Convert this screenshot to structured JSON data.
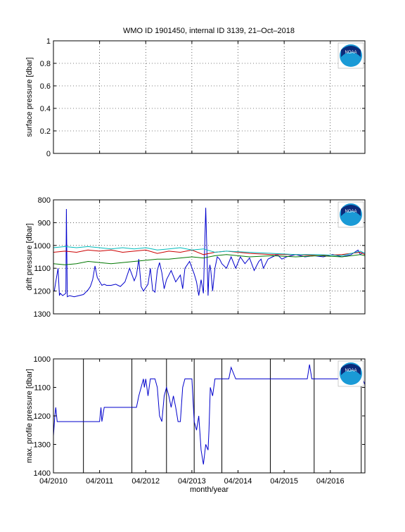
{
  "title": "WMO ID 1901450, internal ID 3139, 21–Oct–2018",
  "logo_text": "NOAA",
  "colors": {
    "axis": "#000000",
    "blue": "#0000cc",
    "red": "#cc0000",
    "green": "#007700",
    "cyan": "#00bbbb",
    "black": "#000000"
  },
  "chart_data": [
    {
      "type": "line",
      "ylabel": "surface pressure [dbar]",
      "xlabel": "",
      "ylim": [
        0,
        1
      ],
      "yticks": [
        0,
        0.2,
        0.4,
        0.6,
        0.8,
        1
      ],
      "xlim": [
        2010.25,
        2017.0
      ],
      "xticks": [
        2010.25,
        2011.25,
        2012.25,
        2013.25,
        2014.25,
        2015.25,
        2016.25
      ],
      "xticklabels": [],
      "grid": true,
      "series": []
    },
    {
      "type": "line",
      "ylabel": "drift pressure [dbar]",
      "xlabel": "",
      "ylim": [
        800,
        1300
      ],
      "yreverse": true,
      "yticks": [
        800,
        900,
        1000,
        1100,
        1200,
        1300
      ],
      "xlim": [
        2010.25,
        2017.0
      ],
      "xticks": [
        2010.25,
        2011.25,
        2012.25,
        2013.25,
        2014.25,
        2015.25,
        2016.25
      ],
      "xticklabels": [],
      "grid": true,
      "series": [
        {
          "color": "#0000cc",
          "x": [
            2010.27,
            2010.3,
            2010.35,
            2010.38,
            2010.4,
            2010.45,
            2010.52,
            2010.53,
            2010.55,
            2010.6,
            2010.7,
            2010.8,
            2010.9,
            2011.0,
            2011.05,
            2011.1,
            2011.15,
            2011.2,
            2011.3,
            2011.35,
            2011.4,
            2011.5,
            2011.6,
            2011.7,
            2011.8,
            2011.9,
            2012.0,
            2012.05,
            2012.1,
            2012.15,
            2012.2,
            2012.3,
            2012.35,
            2012.4,
            2012.45,
            2012.5,
            2012.55,
            2012.6,
            2012.65,
            2012.7,
            2012.8,
            2012.9,
            2013.0,
            2013.05,
            2013.1,
            2013.2,
            2013.3,
            2013.35,
            2013.4,
            2013.45,
            2013.5,
            2013.55,
            2013.6,
            2013.62,
            2013.64,
            2013.66,
            2013.7,
            2013.75,
            2013.8,
            2013.85,
            2013.9,
            2014.0,
            2014.1,
            2014.2,
            2014.3,
            2014.4,
            2014.5,
            2014.6,
            2014.7,
            2014.75,
            2014.8,
            2014.9,
            2015.0,
            2015.1,
            2015.2,
            2015.3,
            2015.5,
            2015.7,
            2015.9,
            2016.1,
            2016.3,
            2016.5,
            2016.7,
            2016.85,
            2016.9,
            2016.95,
            2017.0
          ],
          "y": [
            1200,
            1160,
            1100,
            1220,
            1210,
            1220,
            1210,
            840,
            1225,
            1220,
            1225,
            1220,
            1215,
            1195,
            1180,
            1150,
            1090,
            1140,
            1175,
            1170,
            1175,
            1175,
            1170,
            1180,
            1160,
            1100,
            1155,
            1130,
            1060,
            1180,
            1200,
            1170,
            1100,
            1195,
            1205,
            1110,
            1075,
            1120,
            1190,
            1150,
            1110,
            1160,
            1130,
            1190,
            1100,
            1070,
            1125,
            1160,
            1220,
            1150,
            1210,
            835,
            1220,
            1120,
            1085,
            1110,
            1200,
            1100,
            1050,
            1060,
            1080,
            1100,
            1050,
            1100,
            1050,
            1080,
            1055,
            1110,
            1070,
            1060,
            1100,
            1060,
            1050,
            1040,
            1060,
            1050,
            1040,
            1050,
            1045,
            1050,
            1040,
            1050,
            1040,
            1020,
            1040,
            1030,
            1035
          ]
        },
        {
          "color": "#cc0000",
          "x": [
            2010.25,
            2010.5,
            2010.75,
            2011.0,
            2011.25,
            2011.5,
            2011.75,
            2012.0,
            2012.25,
            2012.5,
            2012.75,
            2013.0,
            2013.25,
            2013.5,
            2013.75,
            2014.0,
            2014.5,
            2015.0,
            2015.5,
            2016.0,
            2016.5,
            2016.9,
            2017.0
          ],
          "y": [
            1030,
            1025,
            1030,
            1020,
            1025,
            1020,
            1030,
            1025,
            1020,
            1035,
            1025,
            1030,
            1020,
            1040,
            1030,
            1025,
            1035,
            1040,
            1040,
            1045,
            1040,
            1030,
            1040
          ]
        },
        {
          "color": "#007700",
          "x": [
            2010.25,
            2010.5,
            2010.75,
            2011.0,
            2011.25,
            2011.5,
            2011.75,
            2012.0,
            2012.25,
            2012.5,
            2012.75,
            2013.0,
            2013.25,
            2013.5,
            2013.75,
            2014.0,
            2014.5,
            2015.0,
            2015.5,
            2016.0,
            2016.5,
            2016.9,
            2017.0
          ],
          "y": [
            1080,
            1085,
            1080,
            1070,
            1075,
            1080,
            1075,
            1070,
            1065,
            1060,
            1060,
            1055,
            1050,
            1055,
            1045,
            1040,
            1050,
            1045,
            1050,
            1045,
            1050,
            1040,
            1045
          ]
        },
        {
          "color": "#00bbbb",
          "x": [
            2010.25,
            2010.5,
            2010.75,
            2011.0,
            2011.25,
            2011.5,
            2011.75,
            2012.0,
            2012.25,
            2012.5,
            2012.75,
            2013.0,
            2013.25,
            2013.5,
            2013.75,
            2014.0,
            2014.5,
            2015.0,
            2015.5,
            2016.0,
            2016.5,
            2016.9,
            2017.0
          ],
          "y": [
            1010,
            1005,
            1010,
            1005,
            1010,
            1015,
            1010,
            1015,
            1010,
            1020,
            1015,
            1010,
            1020,
            1015,
            1030,
            1025,
            1030,
            1035,
            1040,
            1040,
            1045,
            1025,
            1035
          ]
        }
      ]
    },
    {
      "type": "line",
      "ylabel": "max. profile pressure [dbar]",
      "xlabel": "month/year",
      "ylim": [
        1000,
        1400
      ],
      "yreverse": true,
      "yticks": [
        1000,
        1100,
        1200,
        1300,
        1400
      ],
      "xlim": [
        2010.25,
        2017.0
      ],
      "xticks": [
        2010.25,
        2011.25,
        2012.25,
        2013.25,
        2014.25,
        2015.25,
        2016.25
      ],
      "xticklabels": [
        "04/2010",
        "04/2011",
        "04/2012",
        "04/2013",
        "04/2014",
        "04/2015",
        "04/2016"
      ],
      "grid": false,
      "vlines": [
        2010.9,
        2011.95,
        2012.7,
        2013.3,
        2013.9,
        2014.95,
        2015.9,
        2016.92
      ],
      "series": [
        {
          "color": "#0000cc",
          "x": [
            2010.25,
            2010.28,
            2010.3,
            2010.33,
            2010.4,
            2011.2,
            2011.25,
            2011.28,
            2011.3,
            2011.35,
            2011.5,
            2011.75,
            2012.0,
            2012.05,
            2012.1,
            2012.15,
            2012.2,
            2012.22,
            2012.25,
            2012.3,
            2012.35,
            2012.45,
            2012.5,
            2012.55,
            2012.6,
            2012.65,
            2012.7,
            2012.75,
            2012.8,
            2012.85,
            2012.9,
            2012.95,
            2013.0,
            2013.05,
            2013.1,
            2013.15,
            2013.2,
            2013.25,
            2013.3,
            2013.35,
            2013.4,
            2013.45,
            2013.5,
            2013.55,
            2013.6,
            2013.62,
            2013.65,
            2013.7,
            2013.75,
            2013.8,
            2013.85,
            2013.9,
            2014.0,
            2014.05,
            2014.1,
            2014.2,
            2014.25,
            2014.35,
            2014.4,
            2014.45,
            2014.5,
            2014.7,
            2014.8,
            2014.85,
            2014.9,
            2014.95,
            2015.2,
            2015.5,
            2015.75,
            2015.8,
            2015.85,
            2016.0,
            2016.3,
            2016.6,
            2016.8,
            2016.88,
            2016.9,
            2016.95,
            2017.0
          ],
          "y": [
            1270,
            1200,
            1170,
            1220,
            1220,
            1220,
            1220,
            1170,
            1220,
            1170,
            1170,
            1170,
            1170,
            1170,
            1130,
            1100,
            1070,
            1100,
            1070,
            1130,
            1070,
            1070,
            1100,
            1200,
            1220,
            1130,
            1100,
            1130,
            1170,
            1130,
            1170,
            1220,
            1220,
            1100,
            1070,
            1070,
            1070,
            1070,
            1220,
            1250,
            1200,
            1320,
            1370,
            1300,
            1320,
            1250,
            1100,
            1130,
            1070,
            1070,
            1070,
            1070,
            1070,
            1070,
            1030,
            1070,
            1070,
            1070,
            1070,
            1070,
            1070,
            1070,
            1070,
            1070,
            1070,
            1070,
            1070,
            1070,
            1070,
            1020,
            1070,
            1070,
            1070,
            1070,
            1070,
            1030,
            1020,
            1070,
            1090
          ]
        }
      ]
    }
  ]
}
